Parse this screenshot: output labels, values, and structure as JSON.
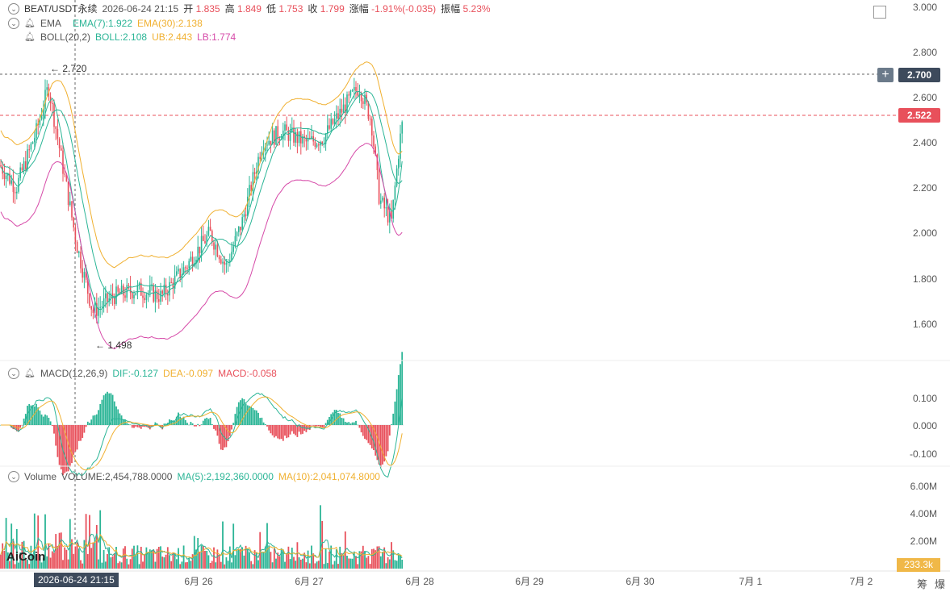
{
  "header": {
    "symbol": "BEAT/USDT永续",
    "datetime": "2026-06-24 21:15",
    "open_label": "开",
    "open": "1.835",
    "high_label": "高",
    "high": "1.849",
    "low_label": "低",
    "low": "1.753",
    "close_label": "收",
    "close": "1.799",
    "change_label": "涨幅",
    "change": "-1.91%(-0.035)",
    "amp_label": "振幅",
    "amp": "5.23%"
  },
  "ema": {
    "label": "EMA",
    "ema7": "EMA(7):1.922",
    "ema30": "EMA(30):2.138"
  },
  "boll": {
    "label": "BOLL(20,2)",
    "boll": "BOLL:2.108",
    "ub": "UB:2.443",
    "lb": "LB:1.774"
  },
  "macd": {
    "label": "MACD(12,26,9)",
    "dif": "DIF:-0.127",
    "dea": "DEA:-0.097",
    "macd": "MACD:-0.058"
  },
  "volume": {
    "label": "Volume",
    "vol": "VOLUME:2,454,788.0000",
    "ma5": "MA(5):2,192,360.0000",
    "ma10": "MA(10):2,041,074.8000"
  },
  "price_axis": [
    "3.000",
    "2.800",
    "2.600",
    "2.400",
    "2.200",
    "2.000",
    "1.800",
    "1.600"
  ],
  "macd_axis": [
    "0.100",
    "0.000",
    "-0.100"
  ],
  "volume_axis": [
    "6.00M",
    "4.00M",
    "2.00M"
  ],
  "annotations": {
    "high_marker": "← 2.720",
    "low_marker": "← 1.498"
  },
  "price_tags": {
    "crosshair": "2.700",
    "last": "2.522",
    "volume": "233.3k"
  },
  "plus": "+",
  "date_axis": [
    "6月 26",
    "6月 27",
    "6月 28",
    "6月 29",
    "6月 30",
    "7月 1",
    "7月 2"
  ],
  "cursor_date": "2026-06-24 21:15",
  "logo": "AiCoin",
  "corner_right": [
    "筹",
    "爆"
  ],
  "colors": {
    "up": "#2bb596",
    "down": "#e8505b",
    "ema7": "#2bb596",
    "ema30": "#f0b030",
    "lb": "#d64aa8",
    "accent_red": "#e8505b"
  },
  "chart_data": {
    "type": "candlestick",
    "series_envelope": {
      "price_x_days": [
        24.5,
        25.0,
        25.3,
        25.6,
        26.0,
        26.4,
        26.8,
        27.2,
        27.5,
        27.8
      ],
      "price_close": [
        2.3,
        2.65,
        1.6,
        1.72,
        1.75,
        2.05,
        2.45,
        2.42,
        2.65,
        2.52
      ]
    },
    "y_range": [
      1.5,
      3.0
    ],
    "high": 2.72,
    "low": 1.498
  }
}
